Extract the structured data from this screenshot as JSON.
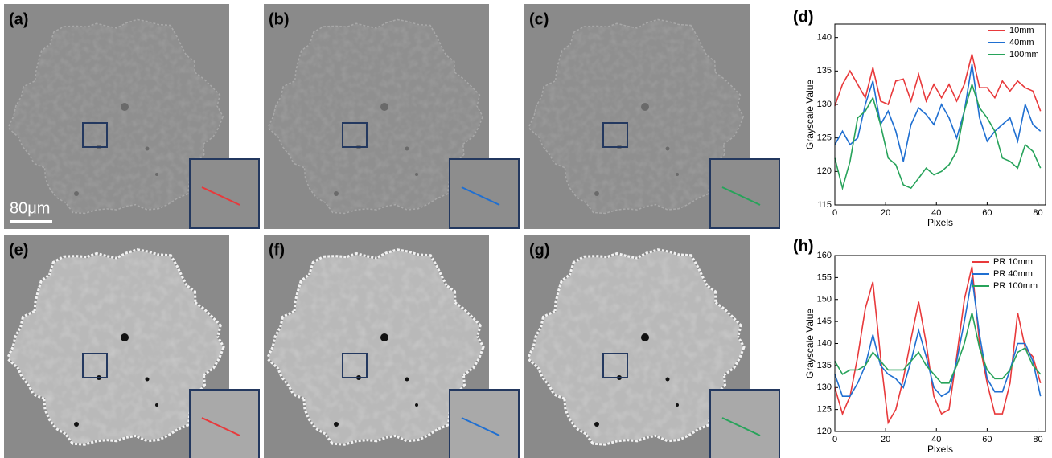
{
  "panels": {
    "labels": [
      "(a)",
      "(b)",
      "(c)",
      "(d)",
      "(e)",
      "(f)",
      "(g)",
      "(h)"
    ],
    "scale_bar": "80μm"
  },
  "chart_data": [
    {
      "type": "line",
      "xlabel": "Pixels",
      "ylabel": "Grayscale Value",
      "x": [
        0,
        3,
        6,
        9,
        12,
        15,
        18,
        21,
        24,
        27,
        30,
        33,
        36,
        39,
        42,
        45,
        48,
        51,
        54,
        57,
        60,
        63,
        66,
        69,
        72,
        75,
        78,
        81
      ],
      "series": [
        {
          "name": "10mm",
          "color": "#e8393b",
          "values": [
            129.8,
            133,
            135,
            133,
            131,
            135.5,
            130.5,
            130,
            133.5,
            133.8,
            130.5,
            134.5,
            130.5,
            133,
            131,
            133,
            130.5,
            133,
            137.5,
            132.5,
            132.5,
            131,
            133.5,
            132,
            133.5,
            132.5,
            132,
            129
          ]
        },
        {
          "name": "40mm",
          "color": "#1f6fd1",
          "values": [
            124,
            126,
            124,
            125,
            130,
            133.5,
            127,
            129,
            126,
            121.5,
            127,
            129.5,
            128.5,
            127,
            130,
            128,
            125,
            129,
            136,
            128,
            124.5,
            126,
            127,
            128,
            124.5,
            130,
            127,
            126
          ]
        },
        {
          "name": "100mm",
          "color": "#27a35a",
          "values": [
            122,
            117.5,
            121.5,
            128,
            129,
            131,
            127,
            122,
            121,
            118,
            117.5,
            119,
            120.5,
            119.5,
            120,
            121,
            123,
            129,
            133,
            129.5,
            128,
            126,
            122,
            121.5,
            120.5,
            124,
            123,
            120.5
          ]
        }
      ],
      "xlim": [
        0,
        83
      ],
      "ylim": [
        115,
        142
      ],
      "xticks": [
        0,
        20,
        40,
        60,
        80
      ],
      "yticks": [
        115,
        120,
        125,
        130,
        135,
        140
      ],
      "legend": "upper right"
    },
    {
      "type": "line",
      "xlabel": "Pixels",
      "ylabel": "Grayscale Value",
      "x": [
        0,
        3,
        6,
        9,
        12,
        15,
        18,
        21,
        24,
        27,
        30,
        33,
        36,
        39,
        42,
        45,
        48,
        51,
        54,
        57,
        60,
        63,
        66,
        69,
        72,
        75,
        78,
        81
      ],
      "series": [
        {
          "name": "PR 10mm",
          "color": "#e8393b",
          "values": [
            130,
            124,
            128,
            137,
            148,
            154,
            137,
            122,
            125,
            132,
            141,
            149.5,
            140,
            128,
            124,
            125,
            137,
            150,
            157.5,
            140,
            131,
            124,
            124,
            131,
            147,
            139,
            137,
            131
          ]
        },
        {
          "name": "PR 40mm",
          "color": "#1f6fd1",
          "values": [
            133,
            128,
            128,
            131,
            135,
            142,
            135,
            133,
            132,
            130,
            136,
            143,
            137,
            130,
            128,
            129,
            136,
            145,
            155,
            142,
            132,
            129,
            129,
            134,
            140,
            140,
            136,
            128
          ]
        },
        {
          "name": "PR 100mm",
          "color": "#27a35a",
          "values": [
            136,
            133,
            134,
            134,
            135,
            138,
            136,
            134,
            134,
            134,
            136,
            138,
            135,
            133,
            131,
            131,
            135,
            140,
            147,
            139,
            134,
            132,
            132,
            134,
            138,
            139,
            135,
            133
          ]
        }
      ],
      "xlim": [
        0,
        83
      ],
      "ylim": [
        120,
        160
      ],
      "xticks": [
        0,
        20,
        40,
        60,
        80
      ],
      "yticks": [
        120,
        125,
        130,
        135,
        140,
        145,
        150,
        155,
        160
      ],
      "legend": "upper right"
    }
  ]
}
